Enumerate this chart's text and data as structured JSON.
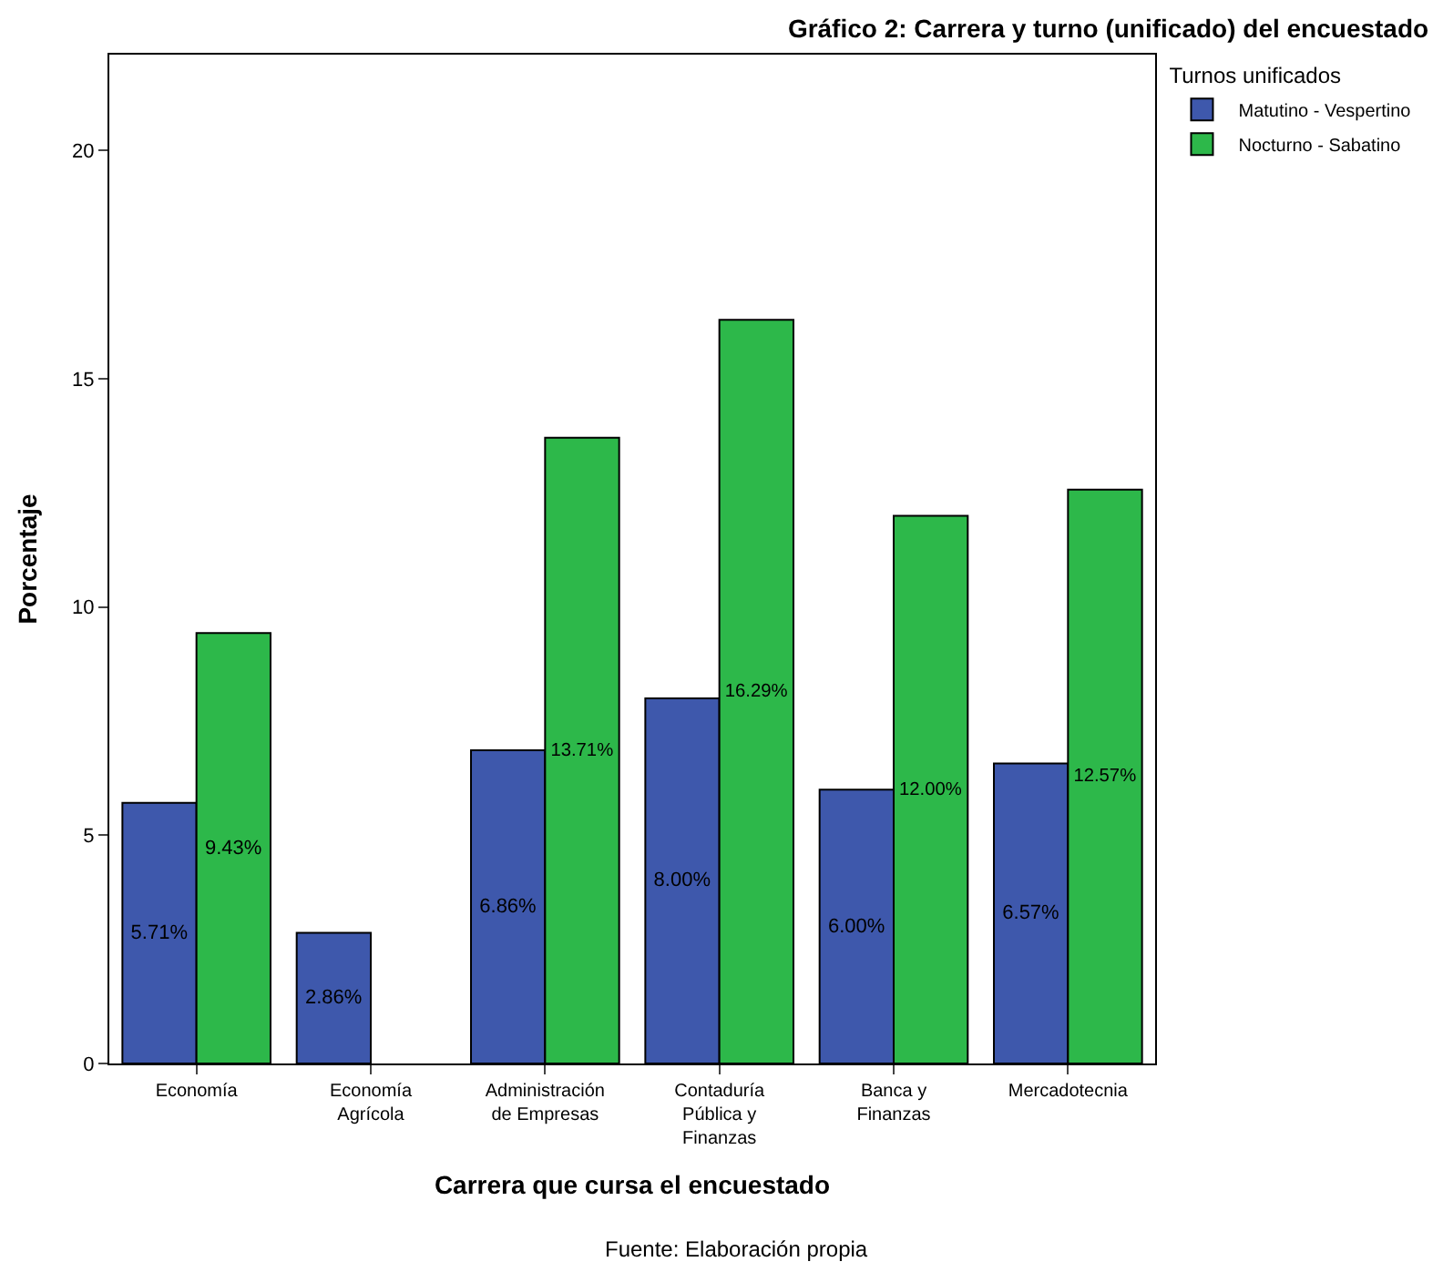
{
  "chart_data": {
    "type": "bar",
    "title": "Gráfico 2: Carrera y turno (unificado) del encuestado",
    "xlabel": "Carrera que cursa el encuestado",
    "ylabel": "Porcentaje",
    "legend_title": "Turnos unificados",
    "legend": "top right",
    "categories": [
      "Economía",
      "Economía Agrícola",
      "Administración de Empresas",
      "Contaduría Pública y Finanzas",
      "Banca y Finanzas",
      "Mercadotecnia"
    ],
    "series": [
      {
        "name": "Matutino - Vespertino",
        "color": "#3e58ac",
        "values": [
          5.71,
          2.86,
          6.86,
          8.0,
          6.0,
          6.57
        ],
        "value_labels": [
          "5.71%",
          "2.86%",
          "6.86%",
          "8.00%",
          "6.00%",
          "6.57%"
        ]
      },
      {
        "name": "Nocturno - Sabatino",
        "color": "#2db84a",
        "values": [
          9.43,
          null,
          13.71,
          16.29,
          12.0,
          12.57
        ],
        "value_labels": [
          "9.43%",
          null,
          "13.71%",
          "16.29%",
          "12.00%",
          "12.57%"
        ]
      }
    ],
    "ylim": [
      0,
      22.1
    ],
    "yticks": [
      0,
      5,
      10,
      15,
      20
    ],
    "annotations": [
      "Fuente: Elaboración propia"
    ]
  }
}
